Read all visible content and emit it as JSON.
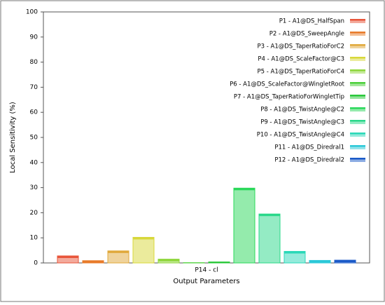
{
  "chart_data": {
    "type": "bar",
    "x_label": "Output Parameters",
    "y_label": "Local Sensitivity (%)",
    "categories": [
      "P14 - cl"
    ],
    "ylim": [
      0,
      100
    ],
    "yticks": [
      0,
      10,
      20,
      30,
      40,
      50,
      60,
      70,
      80,
      90,
      100
    ],
    "legend": "top-right",
    "series": [
      {
        "name": "P1 - A1@DS_HalfSpan",
        "color": "#e8553a",
        "values": [
          2.8
        ]
      },
      {
        "name": "P2 - A1@DS_SweepAngle",
        "color": "#e87b2a",
        "values": [
          0.9
        ]
      },
      {
        "name": "P3 - A1@DS_TaperRatioForC2",
        "color": "#e0a83a",
        "values": [
          4.8
        ]
      },
      {
        "name": "P4 - A1@DS_ScaleFactor@C3",
        "color": "#d8d83a",
        "values": [
          10.2
        ]
      },
      {
        "name": "P5 - A1@DS_TaperRatioForC4",
        "color": "#8ed63a",
        "values": [
          1.5
        ]
      },
      {
        "name": "P6 - A1@DS_ScaleFactor@WingletRoot",
        "color": "#4cd03a",
        "values": [
          0.1
        ]
      },
      {
        "name": "P7 - A1@DS_TaperRatioForWingletTip",
        "color": "#2ac83a",
        "values": [
          0.4
        ]
      },
      {
        "name": "P8 - A1@DS_TwistAngle@C2",
        "color": "#2ad85a",
        "values": [
          29.8
        ]
      },
      {
        "name": "P9 - A1@DS_TwistAngle@C3",
        "color": "#2ad88a",
        "values": [
          19.5
        ]
      },
      {
        "name": "P10 - A1@DS_TwistAngle@C4",
        "color": "#2ad8b8",
        "values": [
          4.6
        ]
      },
      {
        "name": "P11 - A1@DS_Diredral1",
        "color": "#2ac8d8",
        "values": [
          1.0
        ]
      },
      {
        "name": "P12 - A1@DS_Diredral2",
        "color": "#1a5ac8",
        "values": [
          1.1
        ]
      }
    ]
  }
}
